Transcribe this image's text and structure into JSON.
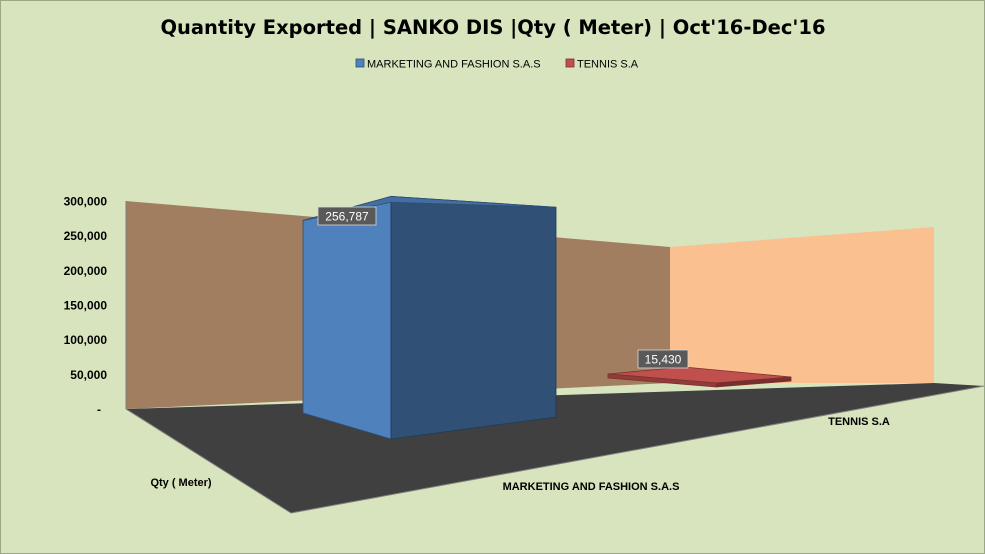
{
  "chart_data": {
    "type": "bar",
    "title": "Quantity Exported | SANKO DIS |Qty ( Meter) | Oct'16-Dec'16",
    "categories": [
      "MARKETING AND FASHION S.A.S",
      "TENNIS S.A"
    ],
    "series_axis_label": "Qty ( Meter)",
    "series": [
      {
        "name": "MARKETING AND FASHION S.A.S",
        "values": [
          256787,
          null
        ],
        "color": "#4f81bd"
      },
      {
        "name": "TENNIS S.A",
        "values": [
          null,
          15430
        ],
        "color": "#c0504d"
      }
    ],
    "data_labels": [
      "256,787",
      "15,430"
    ],
    "y_ticks": [
      "-",
      "50,000",
      "100,000",
      "150,000",
      "200,000",
      "250,000",
      "300,000"
    ],
    "ylim": [
      0,
      300000
    ],
    "legend_position": "top",
    "grid": false,
    "colors": {
      "background": "#d7e4bd",
      "back_wall": "#a07e5f",
      "side_wall": "#fbc08f",
      "floor": "#404040"
    }
  }
}
